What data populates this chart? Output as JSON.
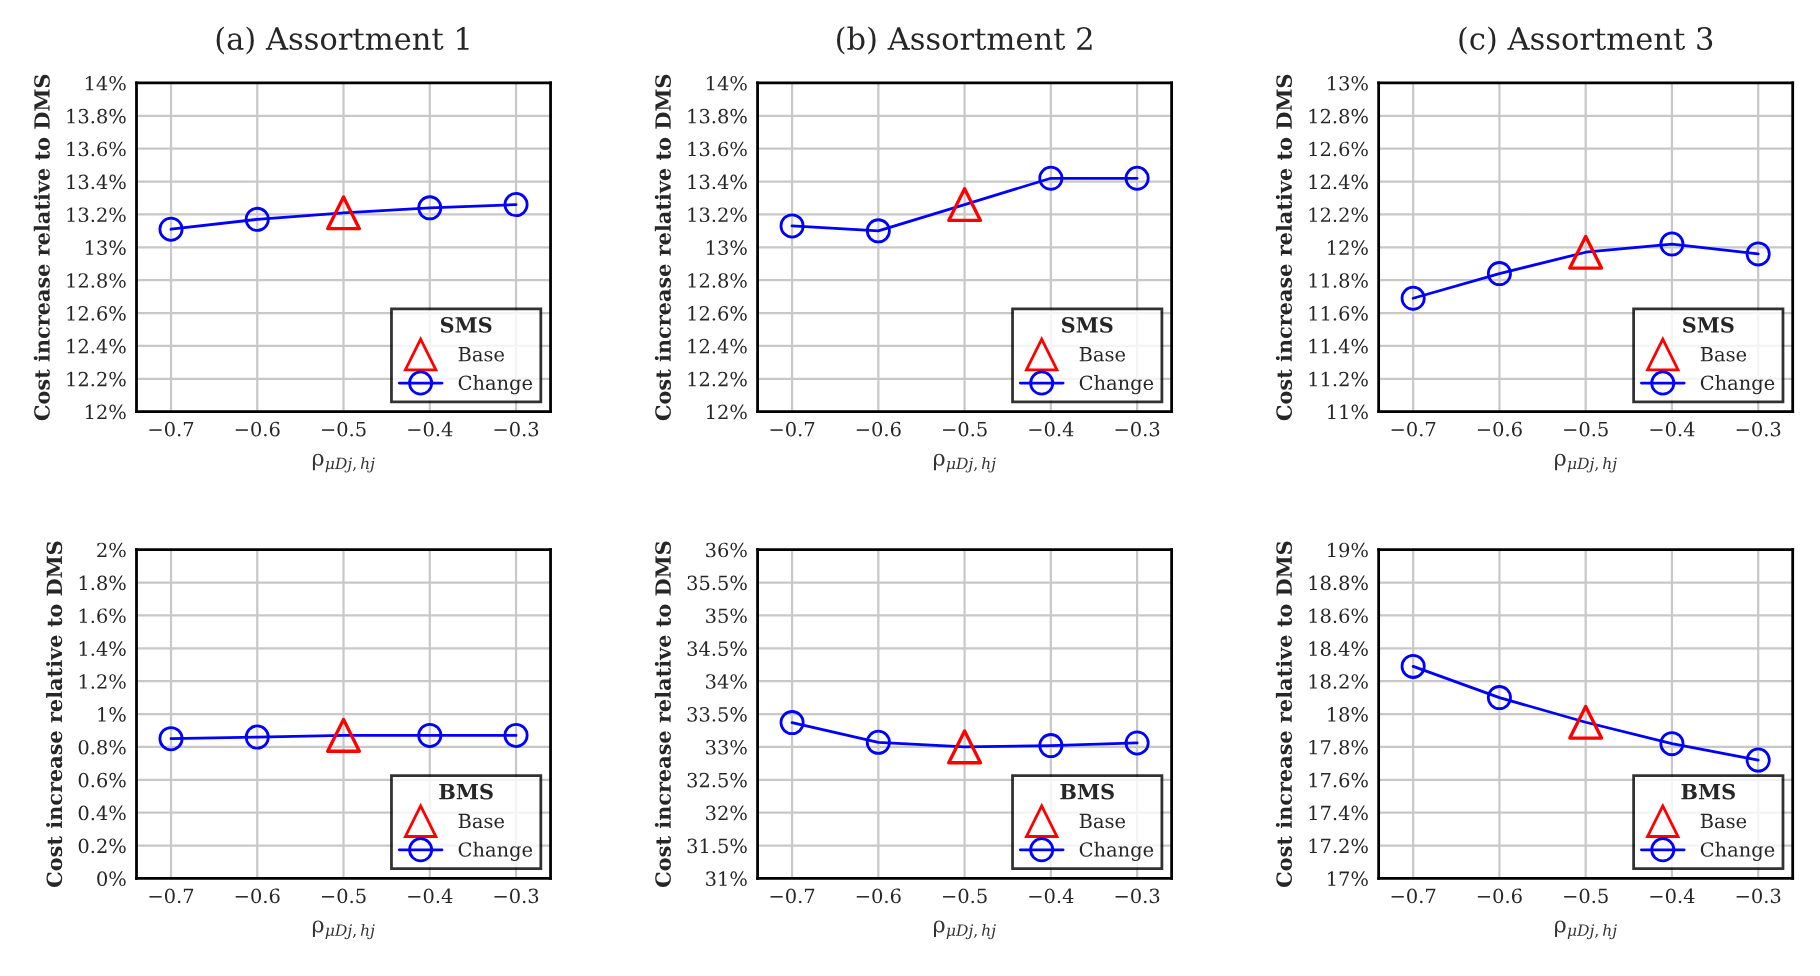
{
  "chart_data": [
    {
      "type": "line",
      "title": "(a) Assortment 1",
      "xlabel": "ρ$_{μDj,hj}$",
      "ylabel": "Cost increase relative to DMS",
      "legend_title": "SMS",
      "legend": "bottom right",
      "grid": true,
      "xlim": [
        -0.74,
        -0.26
      ],
      "xticks": [
        {
          "value": -0.7,
          "label": "−0.7"
        },
        {
          "value": -0.6,
          "label": "−0.6"
        },
        {
          "value": -0.5,
          "label": "−0.5"
        },
        {
          "value": -0.4,
          "label": "−0.4"
        },
        {
          "value": -0.3,
          "label": "−0.3"
        }
      ],
      "ylim": [
        12,
        14
      ],
      "yticks": [
        {
          "value": 12,
          "label": "12%"
        },
        {
          "value": 12.2,
          "label": "12.2%"
        },
        {
          "value": 12.4,
          "label": "12.4%"
        },
        {
          "value": 12.6,
          "label": "12.6%"
        },
        {
          "value": 12.8,
          "label": "12.8%"
        },
        {
          "value": 13,
          "label": "13%"
        },
        {
          "value": 13.2,
          "label": "13.2%"
        },
        {
          "value": 13.4,
          "label": "13.4%"
        },
        {
          "value": 13.6,
          "label": "13.6%"
        },
        {
          "value": 13.8,
          "label": "13.8%"
        },
        {
          "value": 14,
          "label": "14%"
        }
      ],
      "series": [
        {
          "name": "Base",
          "type": "scatter",
          "marker": "triangle",
          "color": "#ff0000",
          "x": [
            -0.5
          ],
          "values": [
            13.21
          ]
        },
        {
          "name": "Change",
          "marker": "circle",
          "color": "#0000ff",
          "x": [
            -0.7,
            -0.6,
            -0.5,
            -0.4,
            -0.3
          ],
          "values": [
            13.11,
            13.17,
            13.21,
            13.24,
            13.26
          ]
        }
      ]
    },
    {
      "type": "line",
      "title": "(b) Assortment 2",
      "xlabel": "ρ$_{μDj,hj}$",
      "ylabel": "Cost increase relative to DMS",
      "legend_title": "SMS",
      "legend": "bottom right",
      "grid": true,
      "xlim": [
        -0.74,
        -0.26
      ],
      "xticks": [
        {
          "value": -0.7,
          "label": "−0.7"
        },
        {
          "value": -0.6,
          "label": "−0.6"
        },
        {
          "value": -0.5,
          "label": "−0.5"
        },
        {
          "value": -0.4,
          "label": "−0.4"
        },
        {
          "value": -0.3,
          "label": "−0.3"
        }
      ],
      "ylim": [
        12,
        14
      ],
      "yticks": [
        {
          "value": 12,
          "label": "12%"
        },
        {
          "value": 12.2,
          "label": "12.2%"
        },
        {
          "value": 12.4,
          "label": "12.4%"
        },
        {
          "value": 12.6,
          "label": "12.6%"
        },
        {
          "value": 12.8,
          "label": "12.8%"
        },
        {
          "value": 13,
          "label": "13%"
        },
        {
          "value": 13.2,
          "label": "13.2%"
        },
        {
          "value": 13.4,
          "label": "13.4%"
        },
        {
          "value": 13.6,
          "label": "13.6%"
        },
        {
          "value": 13.8,
          "label": "13.8%"
        },
        {
          "value": 14,
          "label": "14%"
        }
      ],
      "series": [
        {
          "name": "Base",
          "type": "scatter",
          "marker": "triangle",
          "color": "#ff0000",
          "x": [
            -0.5
          ],
          "values": [
            13.26
          ]
        },
        {
          "name": "Change",
          "marker": "circle",
          "color": "#0000ff",
          "x": [
            -0.7,
            -0.6,
            -0.5,
            -0.4,
            -0.3
          ],
          "values": [
            13.13,
            13.1,
            13.26,
            13.42,
            13.42
          ]
        }
      ]
    },
    {
      "type": "line",
      "title": "(c) Assortment 3",
      "xlabel": "ρ$_{μDj,hj}$",
      "ylabel": "Cost increase relative to DMS",
      "legend_title": "SMS",
      "legend": "bottom right",
      "grid": true,
      "xlim": [
        -0.74,
        -0.26
      ],
      "xticks": [
        {
          "value": -0.7,
          "label": "−0.7"
        },
        {
          "value": -0.6,
          "label": "−0.6"
        },
        {
          "value": -0.5,
          "label": "−0.5"
        },
        {
          "value": -0.4,
          "label": "−0.4"
        },
        {
          "value": -0.3,
          "label": "−0.3"
        }
      ],
      "ylim": [
        11,
        13
      ],
      "yticks": [
        {
          "value": 11,
          "label": "11%"
        },
        {
          "value": 11.2,
          "label": "11.2%"
        },
        {
          "value": 11.4,
          "label": "11.4%"
        },
        {
          "value": 11.6,
          "label": "11.6%"
        },
        {
          "value": 11.8,
          "label": "11.8%"
        },
        {
          "value": 12,
          "label": "12%"
        },
        {
          "value": 12.2,
          "label": "12.2%"
        },
        {
          "value": 12.4,
          "label": "12.4%"
        },
        {
          "value": 12.6,
          "label": "12.6%"
        },
        {
          "value": 12.8,
          "label": "12.8%"
        },
        {
          "value": 13,
          "label": "13%"
        }
      ],
      "series": [
        {
          "name": "Base",
          "type": "scatter",
          "marker": "triangle",
          "color": "#ff0000",
          "x": [
            -0.5
          ],
          "values": [
            11.97
          ]
        },
        {
          "name": "Change",
          "marker": "circle",
          "color": "#0000ff",
          "x": [
            -0.7,
            -0.6,
            -0.5,
            -0.4,
            -0.3
          ],
          "values": [
            11.69,
            11.84,
            11.97,
            12.02,
            11.96
          ]
        }
      ]
    },
    {
      "type": "line",
      "xlabel": "ρ$_{μDj,hj}$",
      "ylabel": "Cost increase relative to DMS",
      "legend_title": "BMS",
      "legend": "bottom right",
      "grid": true,
      "xlim": [
        -0.74,
        -0.26
      ],
      "xticks": [
        {
          "value": -0.7,
          "label": "−0.7"
        },
        {
          "value": -0.6,
          "label": "−0.6"
        },
        {
          "value": -0.5,
          "label": "−0.5"
        },
        {
          "value": -0.4,
          "label": "−0.4"
        },
        {
          "value": -0.3,
          "label": "−0.3"
        }
      ],
      "ylim": [
        0,
        2
      ],
      "yticks": [
        {
          "value": 0,
          "label": "0%"
        },
        {
          "value": 0.2,
          "label": "0.2%"
        },
        {
          "value": 0.4,
          "label": "0.4%"
        },
        {
          "value": 0.6,
          "label": "0.6%"
        },
        {
          "value": 0.8,
          "label": "0.8%"
        },
        {
          "value": 1,
          "label": "1%"
        },
        {
          "value": 1.2,
          "label": "1.2%"
        },
        {
          "value": 1.4,
          "label": "1.4%"
        },
        {
          "value": 1.6,
          "label": "1.6%"
        },
        {
          "value": 1.8,
          "label": "1.8%"
        },
        {
          "value": 2,
          "label": "2%"
        }
      ],
      "series": [
        {
          "name": "Base",
          "type": "scatter",
          "marker": "triangle",
          "color": "#ff0000",
          "x": [
            -0.5
          ],
          "values": [
            0.87
          ]
        },
        {
          "name": "Change",
          "marker": "circle",
          "color": "#0000ff",
          "x": [
            -0.7,
            -0.6,
            -0.5,
            -0.4,
            -0.3
          ],
          "values": [
            0.85,
            0.86,
            0.87,
            0.87,
            0.87
          ]
        }
      ]
    },
    {
      "type": "line",
      "xlabel": "ρ$_{μDj,hj}$",
      "ylabel": "Cost increase relative to DMS",
      "legend_title": "BMS",
      "legend": "bottom right",
      "grid": true,
      "xlim": [
        -0.74,
        -0.26
      ],
      "xticks": [
        {
          "value": -0.7,
          "label": "−0.7"
        },
        {
          "value": -0.6,
          "label": "−0.6"
        },
        {
          "value": -0.5,
          "label": "−0.5"
        },
        {
          "value": -0.4,
          "label": "−0.4"
        },
        {
          "value": -0.3,
          "label": "−0.3"
        }
      ],
      "ylim": [
        31,
        36
      ],
      "yticks": [
        {
          "value": 31,
          "label": "31%"
        },
        {
          "value": 31.5,
          "label": "31.5%"
        },
        {
          "value": 32,
          "label": "32%"
        },
        {
          "value": 32.5,
          "label": "32.5%"
        },
        {
          "value": 33,
          "label": "33%"
        },
        {
          "value": 33.5,
          "label": "33.5%"
        },
        {
          "value": 34,
          "label": "34%"
        },
        {
          "value": 34.5,
          "label": "34.5%"
        },
        {
          "value": 35,
          "label": "35%"
        },
        {
          "value": 35.5,
          "label": "35.5%"
        },
        {
          "value": 36,
          "label": "36%"
        }
      ],
      "series": [
        {
          "name": "Base",
          "type": "scatter",
          "marker": "triangle",
          "color": "#ff0000",
          "x": [
            -0.5
          ],
          "values": [
            33.0
          ]
        },
        {
          "name": "Change",
          "marker": "circle",
          "color": "#0000ff",
          "x": [
            -0.7,
            -0.6,
            -0.5,
            -0.4,
            -0.3
          ],
          "values": [
            33.37,
            33.07,
            33.0,
            33.02,
            33.06
          ]
        }
      ]
    },
    {
      "type": "line",
      "xlabel": "ρ$_{μDj,hj}$",
      "ylabel": "Cost increase relative to DMS",
      "legend_title": "BMS",
      "legend": "bottom right",
      "grid": true,
      "xlim": [
        -0.74,
        -0.26
      ],
      "xticks": [
        {
          "value": -0.7,
          "label": "−0.7"
        },
        {
          "value": -0.6,
          "label": "−0.6"
        },
        {
          "value": -0.5,
          "label": "−0.5"
        },
        {
          "value": -0.4,
          "label": "−0.4"
        },
        {
          "value": -0.3,
          "label": "−0.3"
        }
      ],
      "ylim": [
        17,
        19
      ],
      "yticks": [
        {
          "value": 17,
          "label": "17%"
        },
        {
          "value": 17.2,
          "label": "17.2%"
        },
        {
          "value": 17.4,
          "label": "17.4%"
        },
        {
          "value": 17.6,
          "label": "17.6%"
        },
        {
          "value": 17.8,
          "label": "17.8%"
        },
        {
          "value": 18,
          "label": "18%"
        },
        {
          "value": 18.2,
          "label": "18.2%"
        },
        {
          "value": 18.4,
          "label": "18.4%"
        },
        {
          "value": 18.6,
          "label": "18.6%"
        },
        {
          "value": 18.8,
          "label": "18.8%"
        },
        {
          "value": 19,
          "label": "19%"
        }
      ],
      "series": [
        {
          "name": "Base",
          "type": "scatter",
          "marker": "triangle",
          "color": "#ff0000",
          "x": [
            -0.5
          ],
          "values": [
            17.95
          ]
        },
        {
          "name": "Change",
          "marker": "circle",
          "color": "#0000ff",
          "x": [
            -0.7,
            -0.6,
            -0.5,
            -0.4,
            -0.3
          ],
          "values": [
            18.29,
            18.1,
            17.95,
            17.82,
            17.72
          ]
        }
      ]
    }
  ]
}
